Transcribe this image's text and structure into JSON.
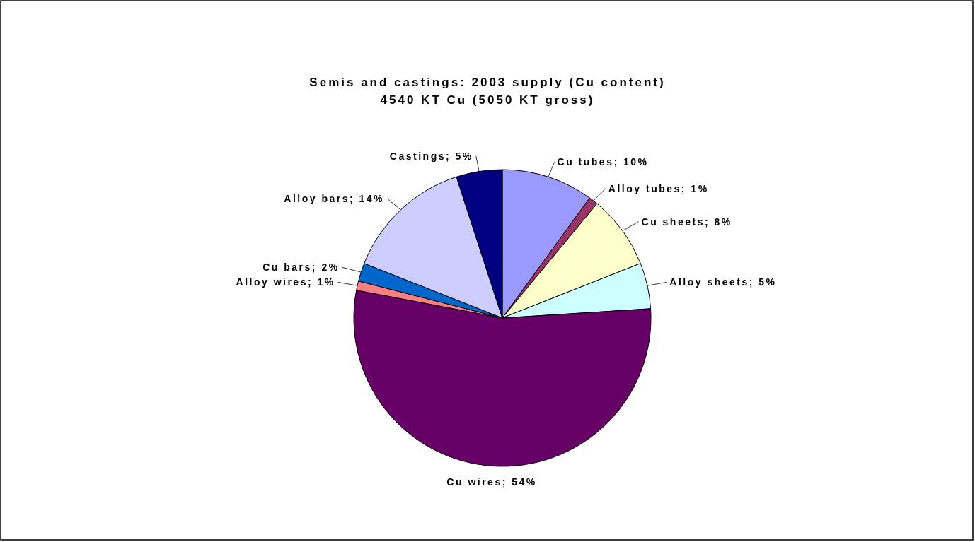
{
  "chart_data": {
    "type": "pie",
    "title": "Semis and castings: 2003 supply (Cu content)\n4540 KT Cu (5050 KT gross)",
    "categories": [
      "Cu tubes",
      "Alloy tubes",
      "Cu sheets",
      "Alloy sheets",
      "Cu wires",
      "Alloy wires",
      "Cu bars",
      "Alloy bars",
      "Castings"
    ],
    "values": [
      10,
      1,
      8,
      5,
      54,
      1,
      2,
      14,
      5
    ],
    "value_labels": [
      "10%",
      "1%",
      "8%",
      "5%",
      "54%",
      "1%",
      "2%",
      "14%",
      "5%"
    ],
    "colors": [
      "#9999ff",
      "#993366",
      "#ffffcc",
      "#ccffff",
      "#660066",
      "#ff8080",
      "#0066cc",
      "#ccccff",
      "#000080"
    ]
  }
}
